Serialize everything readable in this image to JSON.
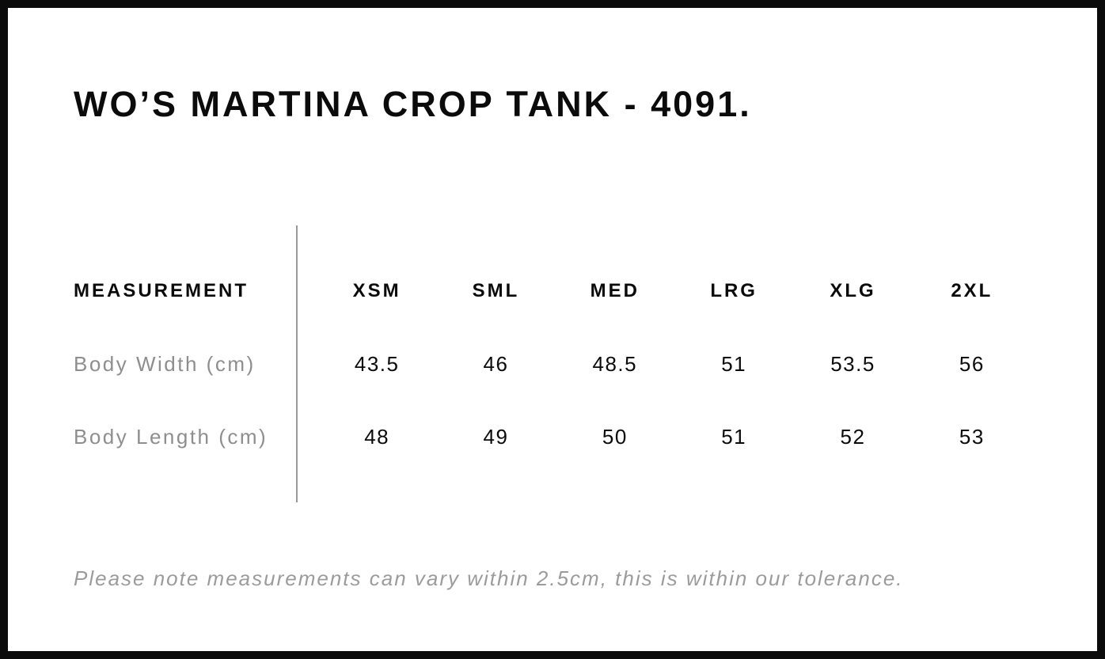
{
  "title": "WO’S MARTINA CROP TANK - 4091.",
  "table": {
    "measurement_header": "MEASUREMENT",
    "size_headers": [
      "XSM",
      "SML",
      "MED",
      "LRG",
      "XLG",
      "2XL"
    ],
    "rows": [
      {
        "label": "Body Width (cm)",
        "values": [
          "43.5",
          "46",
          "48.5",
          "51",
          "53.5",
          "56"
        ]
      },
      {
        "label": "Body Length (cm)",
        "values": [
          "48",
          "49",
          "50",
          "51",
          "52",
          "53"
        ]
      }
    ]
  },
  "note": "Please note measurements can vary within 2.5cm, this is within our tolerance.",
  "colors": {
    "text": "#0b0b0b",
    "row_label": "#8e8e8e",
    "note": "#9b9b9b",
    "divider": "#999999",
    "page_border": "#0b0b0b"
  }
}
